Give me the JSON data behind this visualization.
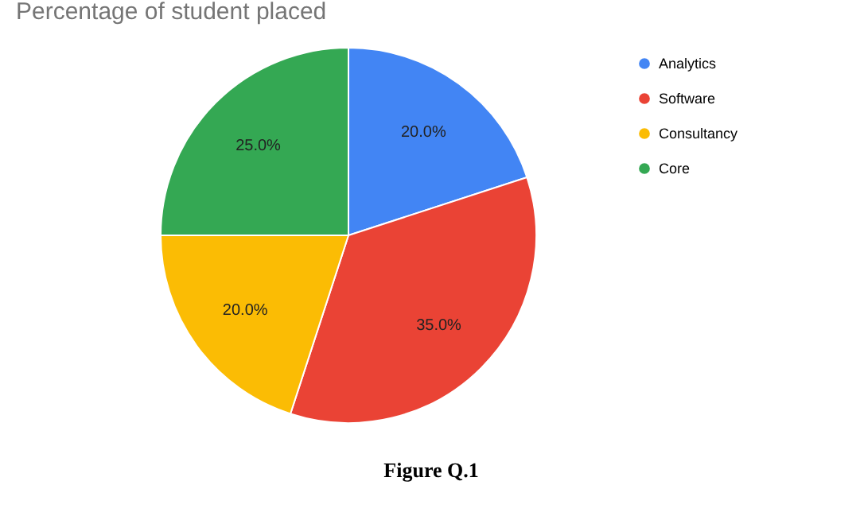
{
  "chart_data": {
    "type": "pie",
    "title": "Percentage of student placed",
    "categories": [
      "Analytics",
      "Software",
      "Consultancy",
      "Core"
    ],
    "values": [
      20,
      35,
      20,
      25
    ],
    "colors": [
      "#4285f4",
      "#ea4335",
      "#fbbc04",
      "#34a853"
    ],
    "value_labels": [
      "20.0%",
      "35.0%",
      "20.0%",
      "25.0%"
    ],
    "legend": "top right",
    "annotations": [
      "Figure Q.1"
    ]
  }
}
